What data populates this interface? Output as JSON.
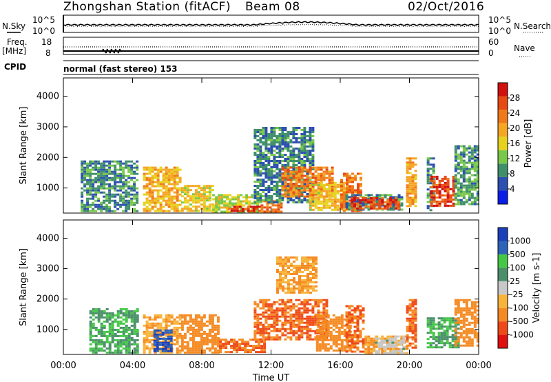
{
  "header": {
    "station": "Zhongshan Station (fitACF)",
    "beam": "Beam 08",
    "date": "02/Oct/2016"
  },
  "top_panels": {
    "nsky_label": "N.Sky",
    "nsky_ticks": [
      "10^5",
      "10^0"
    ],
    "nsearch_label": "N.Search",
    "nsearch_ticks": [
      "10^5",
      "10^0"
    ],
    "freq_label": "Freq.",
    "freq_unit": "[MHz]",
    "freq_ticks": [
      "18",
      "8"
    ],
    "nave_label": "Nave",
    "nave_ticks": [
      "60",
      "0"
    ],
    "cpid_label": "CPID",
    "cpid_text": "normal (fast stereo) 153"
  },
  "x_axis": {
    "label": "Time UT",
    "ticks": [
      "00:00",
      "04:00",
      "08:00",
      "12:00",
      "16:00",
      "20:00",
      "00:00"
    ]
  },
  "colors": {
    "power_scale": [
      "#0a1ee8",
      "#2c4fb0",
      "#3f8f6a",
      "#79c84a",
      "#e6d21e",
      "#f5a623",
      "#f07a1a",
      "#e84a14",
      "#d11010"
    ],
    "velocity_scale": [
      "#e01010",
      "#ee4a18",
      "#f58a22",
      "#f8b43a",
      "#c8c8c8",
      "#4a8f6a",
      "#45c845",
      "#2d63b8",
      "#1a3fb8"
    ]
  },
  "chart_data": [
    {
      "type": "heatmap",
      "title": "Power",
      "ylabel": "Slant Range [km]",
      "xlabel": "",
      "x_ticks": [
        "00:00",
        "04:00",
        "08:00",
        "12:00",
        "16:00",
        "20:00",
        "00:00"
      ],
      "xlim_hours": [
        0,
        24
      ],
      "y_ticks": [
        1000,
        2000,
        3000,
        4000
      ],
      "ylim": [
        180,
        4600
      ],
      "colorbar_label": "Power [dB]",
      "colorbar_ticks": [
        4,
        8,
        12,
        16,
        20,
        24,
        28
      ],
      "colorbar_range": [
        0,
        32
      ],
      "regions": [
        {
          "t0": 1.0,
          "t1": 4.3,
          "r0": 220,
          "r1": 1900,
          "value": 9
        },
        {
          "t0": 4.6,
          "t1": 6.8,
          "r0": 250,
          "r1": 1700,
          "value": 19
        },
        {
          "t0": 6.8,
          "t1": 8.6,
          "r0": 250,
          "r1": 1100,
          "value": 17
        },
        {
          "t0": 8.6,
          "t1": 11.2,
          "r0": 250,
          "r1": 800,
          "value": 15
        },
        {
          "t0": 9.5,
          "t1": 11.3,
          "r0": 220,
          "r1": 420,
          "value": 28
        },
        {
          "t0": 11.4,
          "t1": 12.6,
          "r0": 220,
          "r1": 600,
          "value": 24
        },
        {
          "t0": 11.0,
          "t1": 14.5,
          "r0": 500,
          "r1": 3000,
          "value": 8
        },
        {
          "t0": 12.6,
          "t1": 15.6,
          "r0": 700,
          "r1": 1700,
          "value": 23
        },
        {
          "t0": 14.2,
          "t1": 16.3,
          "r0": 300,
          "r1": 1200,
          "value": 18
        },
        {
          "t0": 16.0,
          "t1": 17.2,
          "r0": 250,
          "r1": 1500,
          "value": 24
        },
        {
          "t0": 16.3,
          "t1": 19.6,
          "r0": 300,
          "r1": 800,
          "value": 9
        },
        {
          "t0": 16.6,
          "t1": 19.4,
          "r0": 300,
          "r1": 700,
          "value": 27
        },
        {
          "t0": 19.8,
          "t1": 20.4,
          "r0": 400,
          "r1": 2000,
          "value": 20
        },
        {
          "t0": 21.0,
          "t1": 21.4,
          "r0": 300,
          "r1": 2000,
          "value": 8
        },
        {
          "t0": 21.2,
          "t1": 22.6,
          "r0": 400,
          "r1": 1400,
          "value": 27
        },
        {
          "t0": 22.6,
          "t1": 24.0,
          "r0": 500,
          "r1": 2400,
          "value": 10
        }
      ]
    },
    {
      "type": "heatmap",
      "title": "Velocity",
      "ylabel": "Slant Range [km]",
      "xlabel": "Time UT",
      "x_ticks": [
        "00:00",
        "04:00",
        "08:00",
        "12:00",
        "16:00",
        "20:00",
        "00:00"
      ],
      "xlim_hours": [
        0,
        24
      ],
      "y_ticks": [
        1000,
        2000,
        3000,
        4000
      ],
      "ylim": [
        180,
        4600
      ],
      "colorbar_label": "Velocity [m s-1]",
      "colorbar_ticks": [
        1000,
        500,
        100,
        25,
        -25,
        -100,
        -500,
        -1000
      ],
      "regions": [
        {
          "t0": 1.5,
          "t1": 4.3,
          "r0": 250,
          "r1": 1700,
          "value": 100
        },
        {
          "t0": 4.6,
          "t1": 6.8,
          "r0": 250,
          "r1": 1500,
          "value": -100
        },
        {
          "t0": 5.2,
          "t1": 6.2,
          "r0": 300,
          "r1": 1000,
          "value": 1000
        },
        {
          "t0": 6.8,
          "t1": 9.0,
          "r0": 250,
          "r1": 1500,
          "value": -300
        },
        {
          "t0": 9.0,
          "t1": 11.6,
          "r0": 250,
          "r1": 700,
          "value": -500
        },
        {
          "t0": 11.0,
          "t1": 15.2,
          "r0": 700,
          "r1": 2000,
          "value": -500
        },
        {
          "t0": 12.3,
          "t1": 14.6,
          "r0": 2200,
          "r1": 3400,
          "value": -100
        },
        {
          "t0": 14.6,
          "t1": 16.6,
          "r0": 300,
          "r1": 1500,
          "value": -300
        },
        {
          "t0": 16.3,
          "t1": 17.4,
          "r0": 300,
          "r1": 1800,
          "value": -500
        },
        {
          "t0": 17.4,
          "t1": 19.8,
          "r0": 250,
          "r1": 800,
          "value": -100
        },
        {
          "t0": 18.0,
          "t1": 19.6,
          "r0": 250,
          "r1": 800,
          "value": 0
        },
        {
          "t0": 19.8,
          "t1": 20.3,
          "r0": 400,
          "r1": 2000,
          "value": -500
        },
        {
          "t0": 21.0,
          "t1": 22.8,
          "r0": 400,
          "r1": 1400,
          "value": 100
        },
        {
          "t0": 22.6,
          "t1": 24.0,
          "r0": 500,
          "r1": 2000,
          "value": -300
        }
      ]
    }
  ]
}
